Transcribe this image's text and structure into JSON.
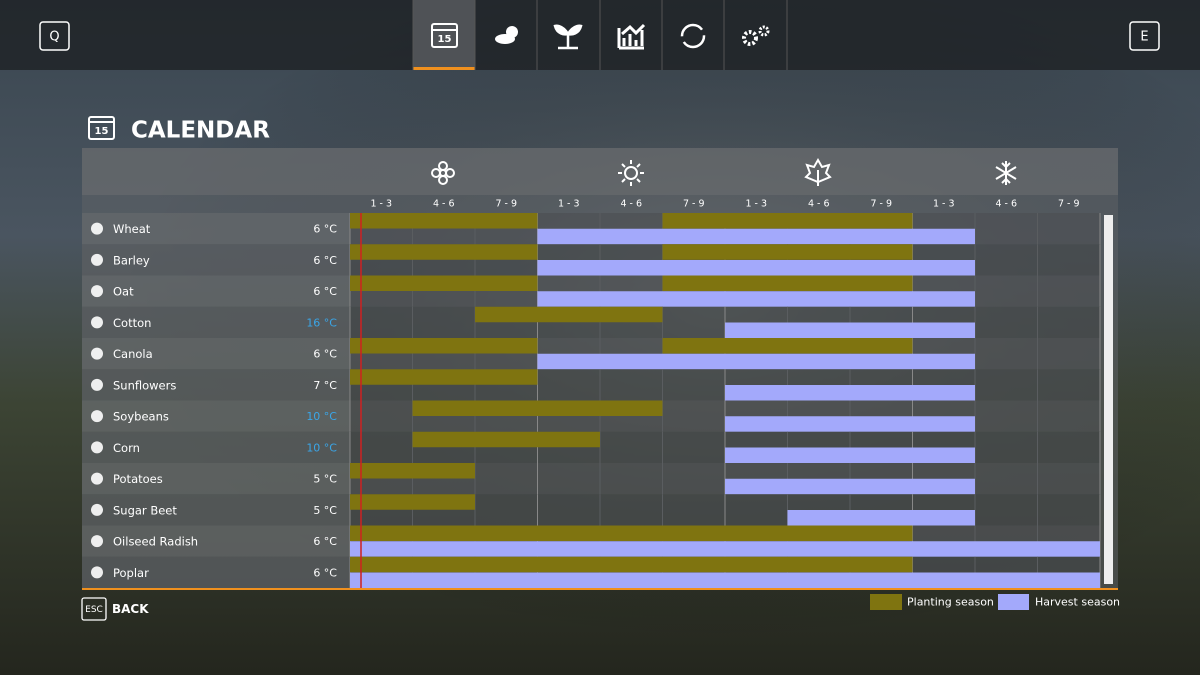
{
  "nav": {
    "left_key": "Q",
    "right_key": "E",
    "calendar_icon_day": "15"
  },
  "title": "CALENDAR",
  "title_icon_day": "15",
  "periods": [
    "1 - 3",
    "4 - 6",
    "7 - 9",
    "1 - 3",
    "4 - 6",
    "7 - 9",
    "1 - 3",
    "4 - 6",
    "7 - 9",
    "1 - 3",
    "4 - 6",
    "7 - 9"
  ],
  "crops": [
    {
      "name": "Wheat",
      "temperature": "6 °C",
      "planting": [
        [
          0,
          2
        ],
        [
          5,
          8
        ]
      ],
      "harvest": [
        [
          3,
          9
        ]
      ]
    },
    {
      "name": "Barley",
      "temperature": "6 °C",
      "planting": [
        [
          0,
          2
        ],
        [
          5,
          8
        ]
      ],
      "harvest": [
        [
          3,
          9
        ]
      ]
    },
    {
      "name": "Oat",
      "temperature": "6 °C",
      "planting": [
        [
          0,
          2
        ],
        [
          5,
          8
        ]
      ],
      "harvest": [
        [
          3,
          9
        ]
      ]
    },
    {
      "name": "Cotton",
      "temperature": "16 °C",
      "highlight": true,
      "planting": [
        [
          2,
          4
        ]
      ],
      "harvest": [
        [
          6,
          9
        ]
      ]
    },
    {
      "name": "Canola",
      "temperature": "6 °C",
      "planting": [
        [
          0,
          2
        ],
        [
          5,
          8
        ]
      ],
      "harvest": [
        [
          3,
          9
        ]
      ]
    },
    {
      "name": "Sunflowers",
      "temperature": "7 °C",
      "planting": [
        [
          0,
          2
        ]
      ],
      "harvest": [
        [
          6,
          9
        ]
      ]
    },
    {
      "name": "Soybeans",
      "temperature": "10 °C",
      "highlight": true,
      "planting": [
        [
          1,
          4
        ]
      ],
      "harvest": [
        [
          6,
          9
        ]
      ]
    },
    {
      "name": "Corn",
      "temperature": "10 °C",
      "highlight": true,
      "planting": [
        [
          1,
          3
        ]
      ],
      "harvest": [
        [
          6,
          9
        ]
      ]
    },
    {
      "name": "Potatoes",
      "temperature": "5 °C",
      "planting": [
        [
          0,
          1
        ]
      ],
      "harvest": [
        [
          6,
          9
        ]
      ]
    },
    {
      "name": "Sugar Beet",
      "temperature": "5 °C",
      "planting": [
        [
          0,
          1
        ]
      ],
      "harvest": [
        [
          7,
          9
        ]
      ]
    },
    {
      "name": "Oilseed Radish",
      "temperature": "6 °C",
      "planting": [
        [
          0,
          8
        ]
      ],
      "harvest": [
        [
          0,
          11
        ]
      ]
    },
    {
      "name": "Poplar",
      "temperature": "6 °C",
      "planting": [
        [
          0,
          8
        ]
      ],
      "harvest": [
        [
          0,
          11
        ]
      ]
    }
  ],
  "back": {
    "key": "ESC",
    "label": "BACK"
  },
  "legend": {
    "planting": "Planting season",
    "harvest": "Harvest season",
    "planting_color": "#7f7410",
    "harvest_color": "#a3a9fb"
  }
}
